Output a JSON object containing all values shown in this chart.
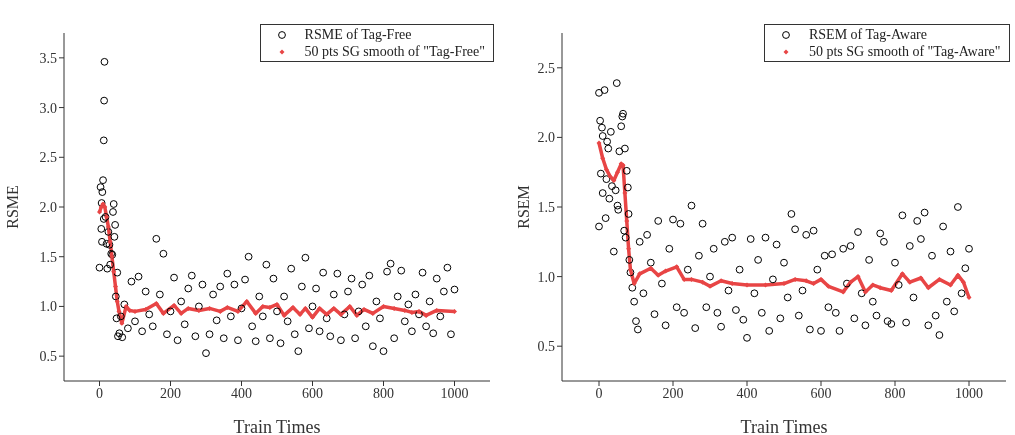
{
  "chart_data": [
    {
      "type": "scatter",
      "xlabel": "Train Times",
      "ylabel": "RSME",
      "xlim": [
        -100,
        1100
      ],
      "xticks": [
        0,
        200,
        400,
        600,
        800,
        1000
      ],
      "ylim": [
        0.25,
        3.75
      ],
      "yticks": [
        {
          "value": 0.5,
          "label": "0.5"
        },
        {
          "value": 1,
          "label": "1.0"
        },
        {
          "value": 1.5,
          "label": "1.5"
        },
        {
          "value": 2,
          "label": "2.0"
        },
        {
          "value": 2.5,
          "label": "2.5"
        },
        {
          "value": 3,
          "label": "3.0"
        },
        {
          "value": 3.5,
          "label": "3.5"
        }
      ],
      "legend": "top right",
      "series": [
        {
          "name": "RSME of Tag-Free",
          "marker": "circle",
          "color": "#000000",
          "x": [
            0,
            3,
            5,
            6,
            7,
            8,
            10,
            12,
            12,
            13,
            14,
            17,
            20,
            22,
            25,
            28,
            30,
            33,
            36,
            38,
            40,
            42,
            44,
            46,
            48,
            50,
            52,
            56,
            60,
            64,
            70,
            80,
            90,
            100,
            110,
            120,
            130,
            140,
            150,
            160,
            170,
            180,
            190,
            200,
            210,
            220,
            230,
            240,
            250,
            260,
            270,
            280,
            290,
            300,
            310,
            320,
            330,
            340,
            350,
            360,
            370,
            380,
            390,
            400,
            410,
            420,
            430,
            440,
            450,
            460,
            470,
            480,
            490,
            500,
            510,
            520,
            530,
            540,
            550,
            560,
            570,
            580,
            590,
            600,
            610,
            620,
            630,
            640,
            650,
            660,
            670,
            680,
            690,
            700,
            710,
            720,
            730,
            740,
            750,
            760,
            770,
            780,
            790,
            800,
            810,
            820,
            830,
            840,
            850,
            860,
            870,
            880,
            890,
            900,
            910,
            920,
            930,
            940,
            950,
            960,
            970,
            980,
            990,
            1000
          ],
          "values": [
            1.39,
            2.2,
            1.78,
            2.04,
            1.65,
            2.15,
            2.27,
            1.88,
            2.67,
            3.07,
            3.46,
            1.9,
            1.63,
            1.38,
            1.75,
            1.62,
            1.42,
            1.53,
            1.52,
            1.95,
            2.03,
            1.7,
            1.82,
            1.1,
            0.88,
            1.34,
            0.7,
            0.73,
            0.9,
            0.69,
            1.02,
            0.78,
            1.25,
            0.85,
            1.3,
            0.75,
            1.15,
            0.92,
            0.8,
            1.68,
            1.12,
            1.53,
            0.72,
            0.95,
            1.29,
            0.66,
            1.05,
            0.82,
            1.18,
            1.31,
            0.7,
            1.0,
            1.22,
            0.53,
            0.72,
            1.12,
            0.86,
            1.2,
            0.68,
            1.33,
            0.9,
            1.22,
            0.66,
            0.98,
            1.27,
            1.5,
            0.8,
            0.65,
            1.1,
            0.9,
            1.42,
            0.68,
            1.28,
            0.95,
            0.63,
            1.1,
            0.85,
            1.38,
            0.72,
            0.55,
            1.2,
            1.49,
            0.78,
            1.0,
            1.18,
            0.75,
            1.34,
            0.88,
            0.7,
            1.12,
            1.33,
            0.66,
            0.92,
            1.15,
            1.28,
            0.68,
            0.95,
            1.22,
            0.8,
            1.31,
            0.6,
            1.05,
            0.88,
            0.55,
            1.35,
            1.43,
            0.68,
            1.1,
            1.36,
            0.85,
            1.02,
            0.75,
            1.12,
            0.92,
            1.34,
            0.8,
            1.05,
            0.73,
            1.28,
            0.9,
            1.15,
            1.39,
            0.72,
            1.17
          ]
        },
        {
          "name": "50 pts SG smooth of \"Tag-Free\"",
          "type": "line",
          "marker": "diamond",
          "line_style": "solid",
          "color": "#e84545",
          "x": [
            0,
            5,
            10,
            15,
            20,
            25,
            30,
            35,
            40,
            45,
            50,
            55,
            63,
            75,
            85,
            100,
            130,
            160,
            180,
            210,
            230,
            250,
            280,
            310,
            340,
            360,
            390,
            415,
            440,
            460,
            480,
            500,
            520,
            545,
            565,
            580,
            600,
            620,
            640,
            660,
            680,
            705,
            725,
            745,
            770,
            800,
            830,
            860,
            880,
            900,
            920,
            950,
            1000
          ],
          "values": [
            1.95,
            2.0,
            2.03,
            2.0,
            1.9,
            1.8,
            1.65,
            1.5,
            1.35,
            1.2,
            1.05,
            0.95,
            0.83,
            1.0,
            0.96,
            0.95,
            0.97,
            1.03,
            0.93,
            1.01,
            0.93,
            0.98,
            0.96,
            0.98,
            0.95,
            0.99,
            0.95,
            1.05,
            0.93,
            1.0,
            0.99,
            1.02,
            0.91,
            0.99,
            0.92,
            0.98,
            0.89,
            0.98,
            0.92,
            0.98,
            0.92,
            1.0,
            0.91,
            0.97,
            0.93,
            1.0,
            0.98,
            0.96,
            0.94,
            0.95,
            0.91,
            0.96,
            0.95
          ]
        }
      ]
    },
    {
      "type": "scatter",
      "xlabel": "Train Times",
      "ylabel": "RSEM",
      "xlim": [
        -100,
        1100
      ],
      "xticks": [
        0,
        200,
        400,
        600,
        800,
        1000
      ],
      "ylim": [
        0.25,
        2.75
      ],
      "yticks": [
        {
          "value": 0.5,
          "label": "0.5"
        },
        {
          "value": 1,
          "label": "1.0"
        },
        {
          "value": 1.5,
          "label": "1.5"
        },
        {
          "value": 2,
          "label": "2.0"
        },
        {
          "value": 2.5,
          "label": "2.5"
        }
      ],
      "legend": "top right",
      "series": [
        {
          "name": "RSEM of Tag-Aware",
          "marker": "circle",
          "color": "#000000",
          "x": [
            0,
            0,
            3,
            5,
            8,
            10,
            10,
            15,
            18,
            20,
            22,
            25,
            28,
            32,
            35,
            40,
            45,
            48,
            50,
            52,
            55,
            60,
            63,
            65,
            68,
            70,
            72,
            75,
            78,
            80,
            82,
            85,
            90,
            95,
            100,
            105,
            110,
            120,
            130,
            140,
            150,
            160,
            170,
            180,
            190,
            200,
            210,
            220,
            230,
            240,
            250,
            260,
            270,
            280,
            290,
            300,
            310,
            320,
            330,
            340,
            350,
            360,
            370,
            380,
            390,
            400,
            410,
            420,
            430,
            440,
            450,
            460,
            470,
            480,
            490,
            500,
            510,
            520,
            530,
            540,
            550,
            560,
            570,
            580,
            590,
            600,
            610,
            620,
            630,
            640,
            650,
            660,
            670,
            680,
            690,
            700,
            710,
            720,
            730,
            740,
            750,
            760,
            770,
            780,
            790,
            800,
            810,
            820,
            830,
            840,
            850,
            860,
            870,
            880,
            890,
            900,
            910,
            920,
            930,
            940,
            950,
            960,
            970,
            980,
            990,
            1000
          ],
          "values": [
            1.36,
            2.32,
            2.12,
            1.74,
            2.07,
            1.6,
            2.01,
            2.34,
            1.42,
            1.7,
            1.97,
            1.92,
            1.56,
            2.04,
            1.65,
            1.18,
            1.62,
            2.39,
            1.51,
            1.48,
            1.9,
            2.08,
            2.15,
            2.17,
            1.33,
            1.92,
            1.28,
            1.76,
            1.64,
            1.45,
            1.12,
            1.03,
            0.92,
            0.82,
            0.68,
            0.62,
            1.25,
            0.88,
            1.3,
            1.1,
            0.73,
            1.4,
            0.95,
            0.65,
            1.2,
            1.41,
            0.78,
            1.38,
            0.74,
            1.05,
            1.51,
            0.63,
            1.15,
            1.38,
            0.78,
            1.0,
            1.2,
            0.74,
            0.64,
            1.25,
            0.9,
            1.28,
            0.76,
            1.05,
            0.69,
            0.56,
            1.27,
            0.88,
            1.12,
            0.74,
            1.28,
            0.61,
            0.98,
            1.23,
            0.7,
            1.1,
            0.85,
            1.45,
            1.34,
            0.72,
            0.9,
            1.3,
            0.62,
            1.33,
            1.05,
            0.61,
            1.15,
            0.78,
            1.16,
            0.74,
            0.61,
            1.2,
            0.95,
            1.22,
            0.7,
            1.32,
            0.88,
            0.65,
            1.12,
            0.82,
            0.72,
            1.31,
            1.25,
            0.68,
            0.66,
            1.1,
            0.94,
            1.44,
            0.67,
            1.22,
            0.85,
            1.4,
            1.27,
            1.46,
            0.65,
            1.15,
            0.72,
            0.58,
            1.36,
            0.82,
            1.18,
            0.75,
            1.5,
            0.88,
            1.06,
            1.2
          ]
        },
        {
          "name": "50 pts SG smooth of \"Tag-Aware\"",
          "type": "line",
          "marker": "diamond",
          "line_style": "solid",
          "color": "#e84545",
          "x": [
            0,
            10,
            20,
            30,
            40,
            50,
            60,
            65,
            70,
            75,
            80,
            85,
            95,
            110,
            140,
            160,
            180,
            210,
            230,
            250,
            280,
            300,
            330,
            360,
            400,
            450,
            500,
            530,
            560,
            580,
            600,
            620,
            660,
            680,
            700,
            720,
            740,
            760,
            790,
            820,
            840,
            870,
            890,
            920,
            950,
            970,
            985,
            1000
          ],
          "values": [
            1.96,
            1.85,
            1.77,
            1.72,
            1.69,
            1.75,
            1.81,
            1.8,
            1.6,
            1.4,
            1.2,
            1.05,
            0.95,
            1.02,
            1.06,
            1.01,
            1.04,
            1.07,
            0.98,
            0.98,
            0.96,
            0.93,
            0.97,
            0.95,
            0.94,
            0.94,
            0.95,
            0.98,
            0.97,
            0.95,
            0.98,
            0.93,
            0.89,
            0.96,
            1.0,
            0.89,
            0.94,
            0.92,
            0.9,
            1.02,
            0.96,
            0.99,
            0.92,
            0.98,
            0.94,
            1.01,
            0.96,
            0.85
          ]
        }
      ]
    }
  ]
}
